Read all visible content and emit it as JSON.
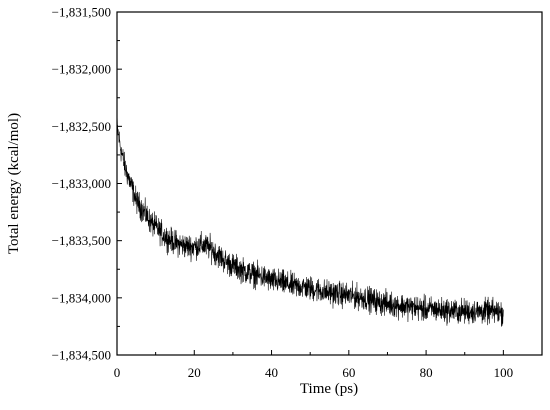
{
  "chart_data": {
    "type": "line",
    "title": "",
    "xlabel": "Time (ps)",
    "ylabel": "Total energy (kcal/mol)",
    "xlim": [
      0,
      110
    ],
    "ylim": [
      -1834500,
      -1831500
    ],
    "xticks": [
      0,
      20,
      40,
      60,
      80,
      100
    ],
    "xtick_labels": [
      "0",
      "20",
      "40",
      "60",
      "80",
      "100"
    ],
    "yticks": [
      -1834500,
      -1834000,
      -1833500,
      -1833000,
      -1832500,
      -1832000,
      -1831500
    ],
    "ytick_labels": [
      "−1,834,500",
      "−1,834,000",
      "−1,833,500",
      "−1,833,000",
      "−1,832,500",
      "−1,832,000",
      "−1,831,500"
    ],
    "grid": false,
    "legend": "none",
    "line_color": "#000000",
    "noise_amplitude": 100,
    "series": [
      {
        "x": [
          0,
          1,
          2,
          3,
          4,
          5,
          6,
          7,
          8,
          9,
          10,
          12,
          14,
          16,
          18,
          20,
          22,
          24,
          26,
          28,
          30,
          32,
          34,
          36,
          38,
          40,
          42,
          44,
          46,
          48,
          50,
          52,
          54,
          56,
          58,
          60,
          62,
          64,
          66,
          68,
          70,
          72,
          74,
          76,
          78,
          80,
          82,
          84,
          86,
          88,
          90,
          92,
          94,
          96,
          98,
          100
        ],
        "y": [
          -1832500,
          -1832700,
          -1832850,
          -1832950,
          -1833050,
          -1833150,
          -1833200,
          -1833250,
          -1833300,
          -1833350,
          -1833380,
          -1833450,
          -1833500,
          -1833530,
          -1833550,
          -1833550,
          -1833540,
          -1833560,
          -1833620,
          -1833680,
          -1833720,
          -1833750,
          -1833780,
          -1833800,
          -1833820,
          -1833850,
          -1833860,
          -1833880,
          -1833900,
          -1833900,
          -1833920,
          -1833930,
          -1833950,
          -1833960,
          -1833970,
          -1833980,
          -1833990,
          -1834000,
          -1834020,
          -1834040,
          -1834050,
          -1834060,
          -1834070,
          -1834080,
          -1834090,
          -1834100,
          -1834100,
          -1834110,
          -1834110,
          -1834120,
          -1834120,
          -1834120,
          -1834120,
          -1834120,
          -1834120,
          -1834130
        ]
      }
    ]
  }
}
